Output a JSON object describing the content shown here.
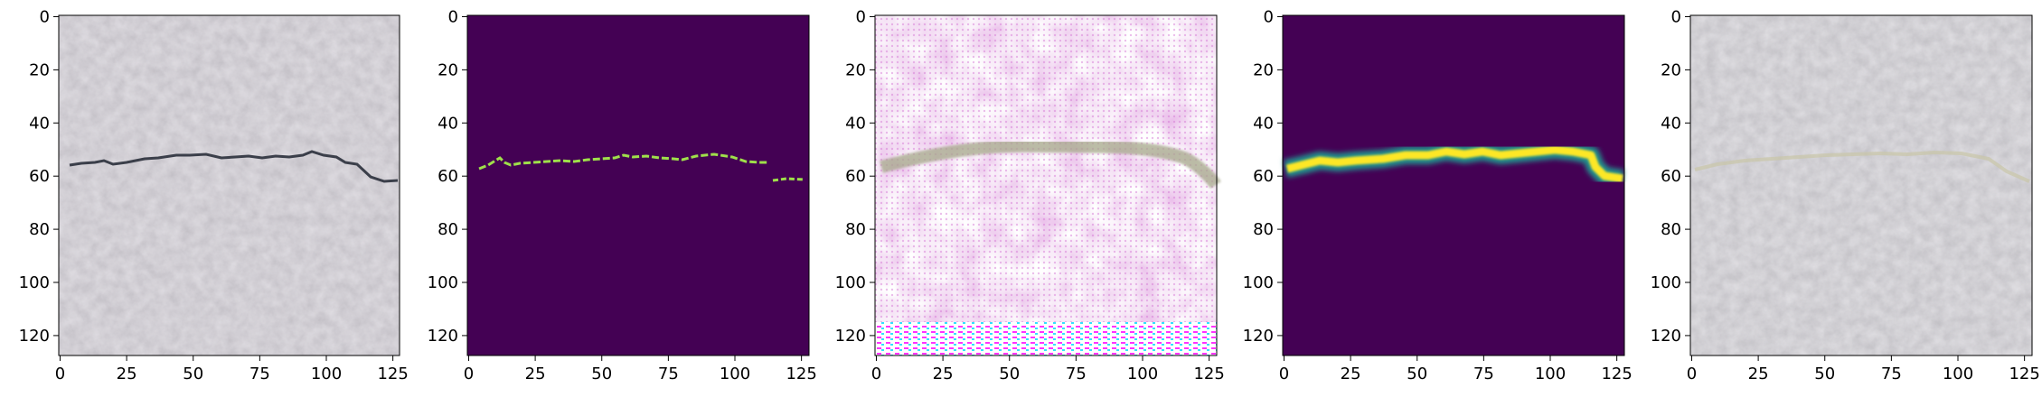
{
  "figure": {
    "panel_count": 5,
    "x_ticks": [
      "0",
      "25",
      "50",
      "75",
      "100",
      "125"
    ],
    "y_ticks": [
      "0",
      "20",
      "40",
      "60",
      "80",
      "100",
      "120"
    ],
    "panels": [
      {
        "id": "input",
        "content": "grey concrete surface photo with a thin dark horizontal crack near y≈55"
      },
      {
        "id": "ground-truth-mask",
        "content": "dark purple background with thin segmented green-yellow crack trace"
      },
      {
        "id": "generated",
        "content": "noisy pink/white textured image with a faint horizontal band near y≈55 and striped artifacts at the bottom"
      },
      {
        "id": "predicted-mask",
        "content": "dark purple background with thick yellow/teal blurred crack trace"
      },
      {
        "id": "reconstruction",
        "content": "grey concrete surface with a faint lighter crack trace near y≈55"
      }
    ]
  }
}
